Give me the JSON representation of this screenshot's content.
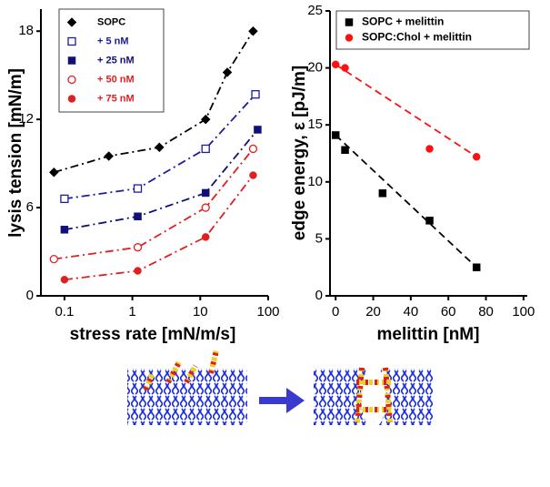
{
  "chart_data": [
    {
      "type": "scatter",
      "x_label": "stress rate [mN/m/s]",
      "y_label": "lysis tension [mN/m]",
      "xscale": "log",
      "xlim": [
        0.045,
        100
      ],
      "xticks": [
        0.1,
        1,
        10,
        100
      ],
      "ylim": [
        0,
        19.5
      ],
      "yticks": [
        0,
        6,
        12,
        18
      ],
      "legend": "upper left",
      "line_style": "dashdot",
      "series": [
        {
          "name": "SOPC",
          "color": "#000000",
          "marker": "diamond",
          "x": [
            0.07,
            0.45,
            2.5,
            12,
            25,
            60
          ],
          "values": [
            8.4,
            9.5,
            10.1,
            12,
            15.2,
            18
          ]
        },
        {
          "name": "+ 5 nM",
          "color": "#1c1c9c",
          "marker": "square-open",
          "x": [
            0.1,
            1.2,
            12,
            65
          ],
          "values": [
            6.6,
            7.3,
            10,
            13.7
          ]
        },
        {
          "name": "+ 25 nM",
          "color": "#10107a",
          "marker": "square",
          "x": [
            0.1,
            1.2,
            12,
            70
          ],
          "values": [
            4.5,
            5.4,
            7,
            11.3
          ]
        },
        {
          "name": "+ 50 nM",
          "color": "#e02020",
          "marker": "circle-open",
          "x": [
            0.07,
            1.2,
            12,
            60
          ],
          "values": [
            2.5,
            3.3,
            6,
            10
          ]
        },
        {
          "name": "+ 75 nM",
          "color": "#e02020",
          "marker": "circle",
          "x": [
            0.1,
            1.2,
            12,
            60
          ],
          "values": [
            1.1,
            1.7,
            4,
            8.2
          ]
        }
      ]
    },
    {
      "type": "scatter",
      "x_label": "melittin [nM]",
      "y_label": "edge energy, ε [pJ/m]",
      "xscale": "linear",
      "xlim": [
        -3,
        102
      ],
      "xticks": [
        0,
        20,
        40,
        60,
        80,
        100
      ],
      "ylim": [
        0,
        25
      ],
      "yticks": [
        0,
        5,
        10,
        15,
        20,
        25
      ],
      "legend": "upper right",
      "line_style": "dashed",
      "series": [
        {
          "name": "SOPC + melittin",
          "color": "#000000",
          "marker": "square",
          "x": [
            0,
            5,
            25,
            50,
            75
          ],
          "values": [
            14.1,
            12.8,
            9,
            6.6,
            2.5
          ]
        },
        {
          "name": "SOPC:Chol + melittin",
          "color": "#ff1010",
          "marker": "circle",
          "x": [
            0,
            5,
            50,
            75
          ],
          "values": [
            20.3,
            20,
            12.9,
            12.2
          ]
        }
      ]
    }
  ]
}
